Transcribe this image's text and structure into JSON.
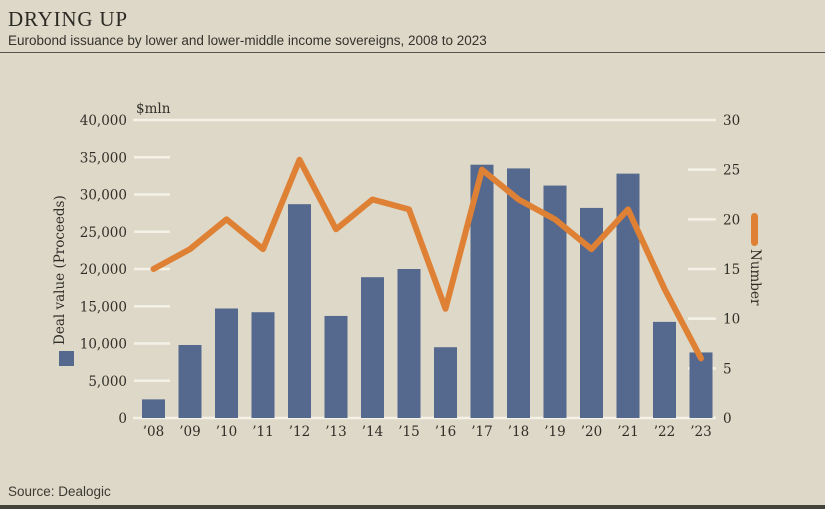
{
  "header": {
    "title": "DRYING UP",
    "subtitle": "Eurobond issuance by lower and lower-middle income sovereigns, 2008 to 2023"
  },
  "footer": {
    "source": "Source: Dealogic"
  },
  "colors": {
    "background": "#ded8c8",
    "bar": "#55688e",
    "line": "#df8134",
    "gridline": "#f4f1e7",
    "text": "#2f2e27",
    "rule": "#55544a"
  },
  "chart_data": {
    "type": "bar",
    "subtype": "bar-and-line-dual-axis",
    "categories": [
      "’08",
      "’09",
      "’10",
      "’11",
      "’12",
      "’13",
      "’14",
      "’15",
      "’16",
      "’17",
      "’18",
      "’19",
      "’20",
      "’21",
      "’22",
      "’23"
    ],
    "series": [
      {
        "name": "Deal value (Proceeds)",
        "type": "bar",
        "axis": "left",
        "color": "#55688e",
        "values": [
          2500,
          9800,
          14700,
          14200,
          28700,
          13700,
          18900,
          20000,
          9500,
          34000,
          33500,
          31200,
          28200,
          32800,
          12900,
          8800
        ]
      },
      {
        "name": "Number",
        "type": "line",
        "axis": "right",
        "color": "#df8134",
        "values": [
          15,
          17,
          20,
          17,
          26,
          19,
          22,
          21,
          11,
          25,
          22,
          20,
          17,
          21,
          13,
          6
        ]
      }
    ],
    "left_axis": {
      "title": "$mln",
      "min": 0,
      "max": 40000,
      "tick_step": 5000,
      "ticks": [
        "40,000",
        "35,000",
        "30,000",
        "25,000",
        "20,000",
        "15,000",
        "10,000",
        "5,000",
        "0"
      ]
    },
    "right_axis": {
      "title": "Number",
      "min": 0,
      "max": 30,
      "tick_step": 5,
      "ticks": [
        "30",
        "25",
        "20",
        "15",
        "10",
        "5",
        "0"
      ]
    },
    "grid": "white ticks at axis edges; full-width lines at top and baseline only",
    "legend_position": "left: vertical label with square swatch; right: vertical label with rounded line swatch"
  }
}
